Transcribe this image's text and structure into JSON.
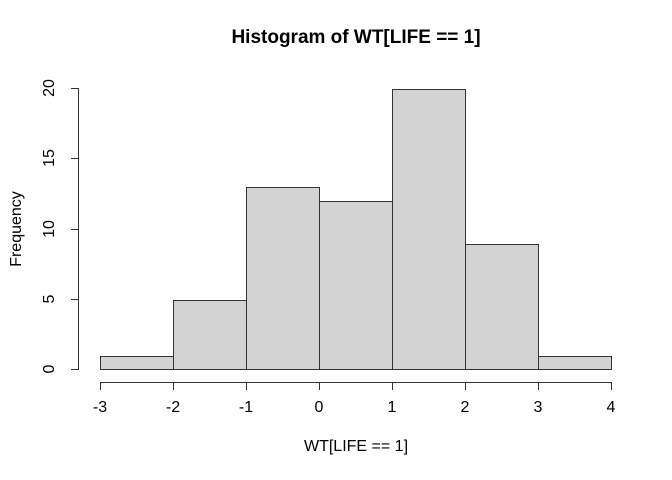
{
  "figure": {
    "background_color": "#ffffff",
    "bar_fill_color": "#d3d3d3",
    "bar_border_color": "#333333",
    "axis_color": "#333333",
    "text_color": "#000000"
  },
  "chart_data": {
    "type": "bar",
    "subtype": "histogram",
    "title": "Histogram of WT[LIFE == 1]",
    "xlabel": "WT[LIFE == 1]",
    "ylabel": "Frequency",
    "bin_edges": [
      -3,
      -2,
      -1,
      0,
      1,
      2,
      3,
      4
    ],
    "counts": [
      1,
      5,
      13,
      12,
      20,
      9,
      1
    ],
    "x_ticks": [
      "-3",
      "-2",
      "-1",
      "0",
      "1",
      "2",
      "3",
      "4"
    ],
    "x_tick_values": [
      -3,
      -2,
      -1,
      0,
      1,
      2,
      3,
      4
    ],
    "y_ticks": [
      "0",
      "5",
      "10",
      "15",
      "20"
    ],
    "y_tick_values": [
      0,
      5,
      10,
      15,
      20
    ],
    "xlim": [
      -3,
      4
    ],
    "ylim": [
      0,
      20
    ],
    "grid": false,
    "legend": null
  }
}
